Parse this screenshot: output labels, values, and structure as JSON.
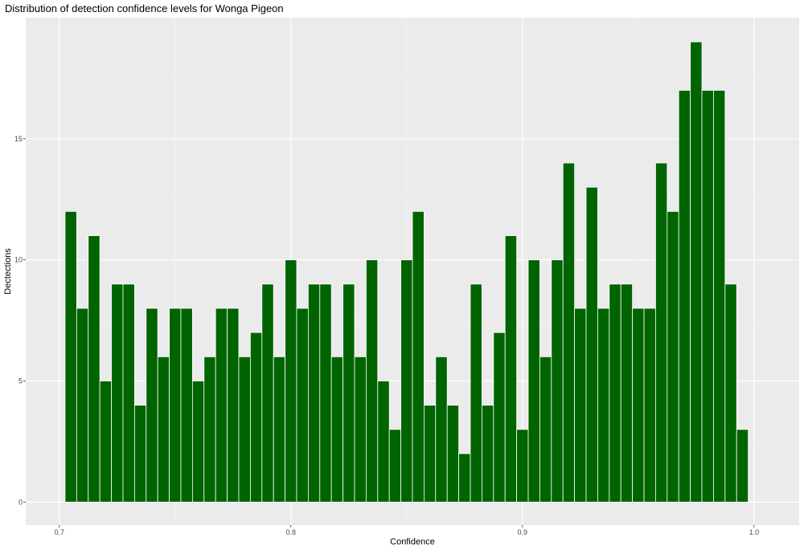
{
  "chart_data": {
    "type": "bar",
    "title": "Distribution of detection confidence levels for Wonga Pigeon",
    "xlabel": "Confidence",
    "ylabel": "Dectections",
    "xlim": [
      0.6855,
      1.0195
    ],
    "ylim": [
      -0.95,
      20.0
    ],
    "x_ticks": [
      0.7,
      0.8,
      0.9,
      1.0
    ],
    "x_tick_labels": [
      "0.7",
      "0.8",
      "0.9",
      "1.0"
    ],
    "y_ticks": [
      0,
      5,
      10,
      15
    ],
    "y_tick_labels": [
      "0",
      "5",
      "10",
      "15"
    ],
    "bin_start": 0.7025,
    "bin_width": 0.005,
    "values": [
      12,
      8,
      11,
      5,
      9,
      9,
      4,
      8,
      6,
      8,
      8,
      5,
      6,
      8,
      8,
      6,
      7,
      9,
      6,
      10,
      8,
      9,
      9,
      6,
      9,
      6,
      10,
      5,
      3,
      10,
      12,
      4,
      6,
      4,
      2,
      9,
      4,
      7,
      11,
      3,
      10,
      6,
      10,
      14,
      8,
      13,
      8,
      9,
      9,
      8,
      8,
      14,
      12,
      17,
      19,
      17,
      17,
      9,
      3
    ],
    "bar_color": "#006400",
    "panel_background": "#ebebeb",
    "grid": true,
    "legend": "none"
  }
}
